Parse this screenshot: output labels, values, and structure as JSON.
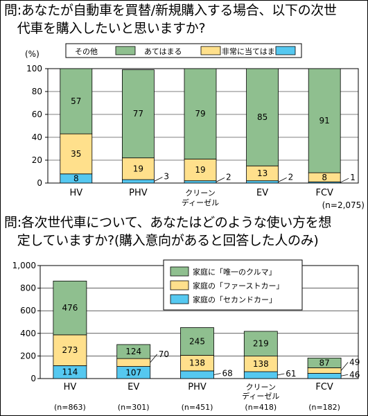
{
  "question1": {
    "line1": "問:あなたが自動車を買替/新規購入する場合、以下の次世",
    "line2": "　代車を購入したいと思いますか?"
  },
  "question2": {
    "line1": "問:各次世代車について、あなたはどのような使い方を想",
    "line2": "　定していますか?(購入意向があると回答した人のみ)"
  },
  "colors": {
    "green": "#8fbf8f",
    "yellow": "#ffe08c",
    "blue": "#55c8f0"
  },
  "chart_data": [
    {
      "type": "bar",
      "stacked": true,
      "ylabel": "(%)",
      "ylim": [
        0,
        100
      ],
      "yticks": [
        0,
        20,
        40,
        60,
        80,
        100
      ],
      "categories": [
        "HV",
        "PHV",
        "クリーン\nディーゼル",
        "EV",
        "FCV"
      ],
      "series": [
        {
          "name": "非常に当てはまる",
          "values": [
            8,
            3,
            2,
            2,
            1
          ]
        },
        {
          "name": "あてはまる",
          "values": [
            35,
            19,
            19,
            13,
            8
          ]
        },
        {
          "name": "その他",
          "values": [
            57,
            77,
            79,
            85,
            91
          ]
        }
      ],
      "legend_order": [
        "その他",
        "あてはまる",
        "非常に当てはまる"
      ],
      "legend_position": "top",
      "note": "(n=2,075)"
    },
    {
      "type": "bar",
      "stacked": true,
      "ylim": [
        0,
        1000
      ],
      "yticks": [
        "0",
        "200",
        "400",
        "600",
        "800",
        "1,000"
      ],
      "categories": [
        "HV",
        "EV",
        "PHV",
        "クリーン\nディーゼル",
        "FCV"
      ],
      "series": [
        {
          "name": "家庭の「セカンドカー」",
          "values": [
            114,
            107,
            68,
            61,
            46
          ]
        },
        {
          "name": "家庭の「ファーストカー」",
          "values": [
            273,
            70,
            138,
            138,
            49
          ]
        },
        {
          "name": "家庭に「唯一のクルマ」",
          "values": [
            476,
            124,
            245,
            219,
            87
          ]
        }
      ],
      "legend_order": [
        "家庭に「唯一のクルマ」",
        "家庭の「ファーストカー」",
        "家庭の「セカンドカー」"
      ],
      "legend_position": "top-right",
      "n_labels": [
        "(n=863)",
        "(n=301)",
        "(n=451)",
        "(n=418)",
        "(n=182)"
      ]
    }
  ]
}
